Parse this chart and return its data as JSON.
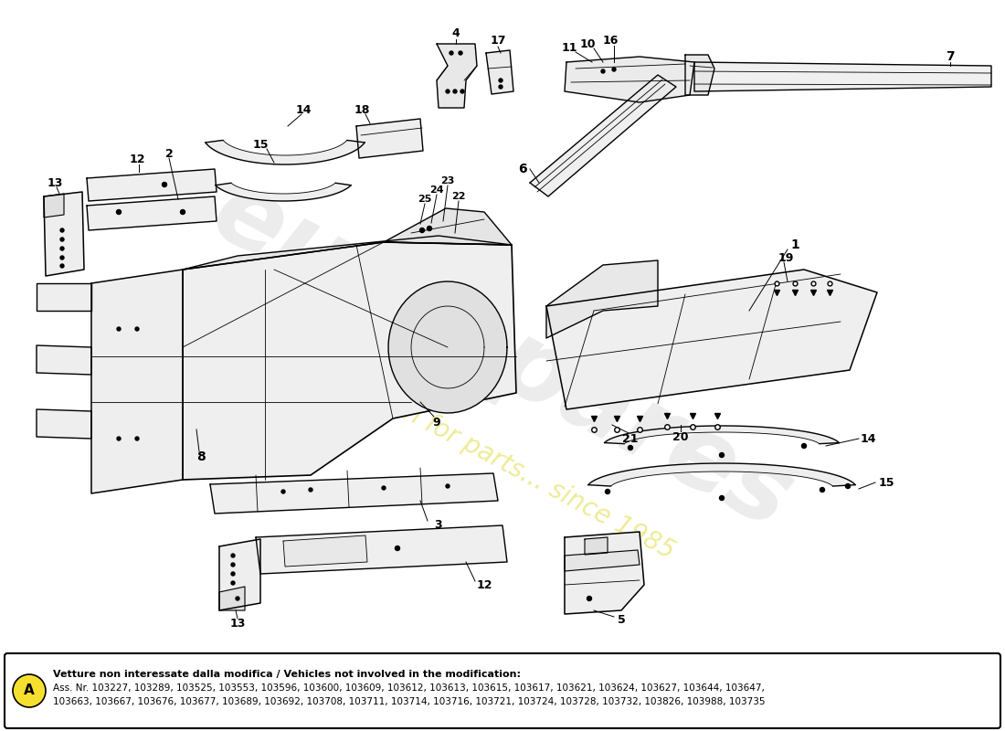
{
  "bg_color": "#ffffff",
  "watermark_text": "eurospares",
  "watermark_subtext": "a passion for parts... since 1985",
  "note_circle_label": "A",
  "note_circle_color": "#f5e030",
  "note_title": "Vetture non interessate dalla modifica / Vehicles not involved in the modification:",
  "note_body": "Ass. Nr. 103227, 103289, 103525, 103553, 103596, 103600, 103609, 103612, 103613, 103615, 103617, 103621, 103624, 103627, 103644, 103647,\n103663, 103667, 103676, 103677, 103689, 103692, 103708, 103711, 103714, 103716, 103721, 103724, 103728, 103732, 103826, 103988, 103735"
}
